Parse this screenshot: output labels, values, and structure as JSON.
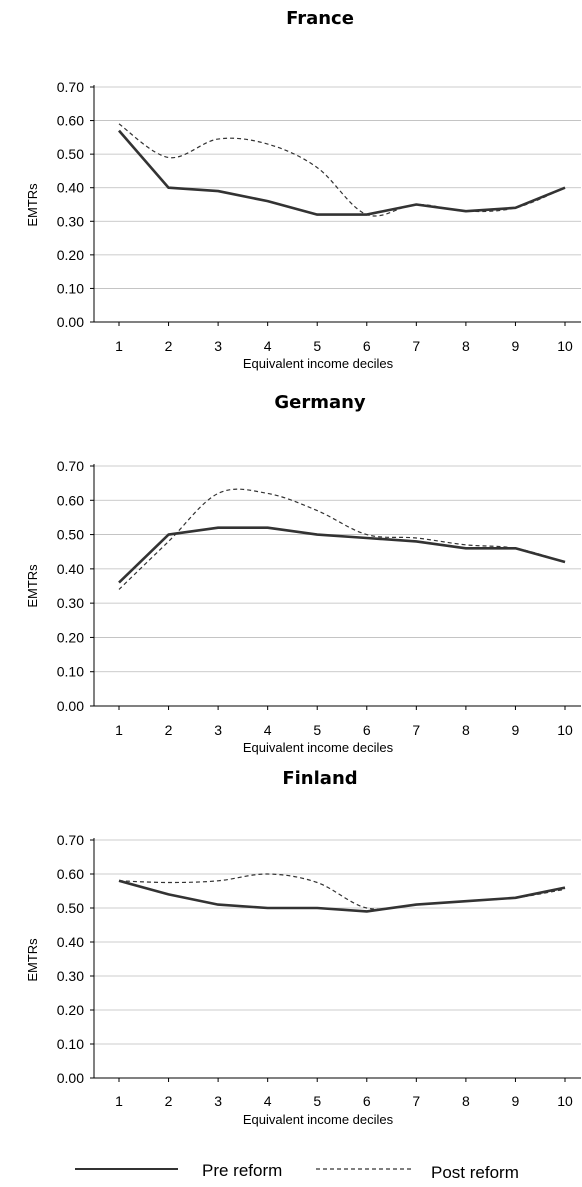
{
  "chart_data": [
    {
      "type": "line",
      "title": "France",
      "xlabel": "Equivalent income deciles",
      "ylabel": "EMTRs",
      "x": [
        "1",
        "2",
        "3",
        "4",
        "5",
        "6",
        "7",
        "8",
        "9",
        "10"
      ],
      "yticks": [
        "0.00",
        "0.10",
        "0.20",
        "0.30",
        "0.40",
        "0.50",
        "0.60",
        "0.70"
      ],
      "ylim": [
        0,
        0.7
      ],
      "grid": true,
      "series": [
        {
          "name": "Pre reform",
          "style": "solid",
          "values": [
            0.57,
            0.4,
            0.39,
            0.36,
            0.32,
            0.32,
            0.35,
            0.33,
            0.34,
            0.4
          ]
        },
        {
          "name": "Post reform",
          "style": "dashed",
          "values": [
            0.59,
            0.49,
            0.545,
            0.53,
            0.46,
            0.32,
            0.35,
            0.33,
            0.34,
            0.4
          ]
        }
      ]
    },
    {
      "type": "line",
      "title": "Germany",
      "xlabel": "Equivalent income deciles",
      "ylabel": "EMTRs",
      "x": [
        "1",
        "2",
        "3",
        "4",
        "5",
        "6",
        "7",
        "8",
        "9",
        "10"
      ],
      "yticks": [
        "0.00",
        "0.10",
        "0.20",
        "0.30",
        "0.40",
        "0.50",
        "0.60",
        "0.70"
      ],
      "ylim": [
        0,
        0.7
      ],
      "grid": true,
      "series": [
        {
          "name": "Pre reform",
          "style": "solid",
          "values": [
            0.36,
            0.5,
            0.52,
            0.52,
            0.5,
            0.49,
            0.48,
            0.46,
            0.46,
            0.42
          ]
        },
        {
          "name": "Post reform",
          "style": "dashed",
          "values": [
            0.34,
            0.48,
            0.62,
            0.62,
            0.57,
            0.5,
            0.49,
            0.47,
            0.46,
            0.42
          ]
        }
      ]
    },
    {
      "type": "line",
      "title": "Finland",
      "xlabel": "Equivalent income deciles",
      "ylabel": "EMTRs",
      "x": [
        "1",
        "2",
        "3",
        "4",
        "5",
        "6",
        "7",
        "8",
        "9",
        "10"
      ],
      "yticks": [
        "0.00",
        "0.10",
        "0.20",
        "0.30",
        "0.40",
        "0.50",
        "0.60",
        "0.70"
      ],
      "ylim": [
        0,
        0.7
      ],
      "grid": true,
      "series": [
        {
          "name": "Pre reform",
          "style": "solid",
          "values": [
            0.58,
            0.54,
            0.51,
            0.5,
            0.5,
            0.49,
            0.51,
            0.52,
            0.53,
            0.56
          ]
        },
        {
          "name": "Post reform",
          "style": "dashed",
          "values": [
            0.58,
            0.575,
            0.58,
            0.6,
            0.575,
            0.5,
            0.51,
            0.52,
            0.53,
            0.555
          ]
        }
      ]
    }
  ],
  "legend": {
    "pre_label": "Pre reform",
    "post_label": "Post reform",
    "placement": "bottom"
  }
}
